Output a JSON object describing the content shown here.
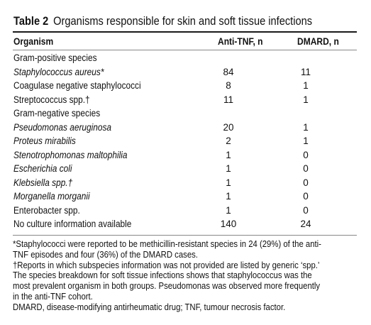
{
  "table": {
    "label": "Table 2",
    "title": "Organisms responsible for skin and soft tissue infections",
    "headers": {
      "organism": "Organism",
      "anti_tnf": "Anti-TNF, n",
      "dmard": "DMARD, n"
    },
    "rows": [
      {
        "organism": "Gram-positive species",
        "italic": false,
        "anti_tnf": "",
        "dmard": ""
      },
      {
        "organism": "Staphylococcus aureus*",
        "italic": true,
        "anti_tnf": "84",
        "dmard": "11"
      },
      {
        "organism": "Coagulase negative staphylococci",
        "italic": false,
        "anti_tnf": "8",
        "dmard": "1"
      },
      {
        "organism": "Streptococcus spp.†",
        "italic": false,
        "anti_tnf": "11",
        "dmard": "1"
      },
      {
        "organism": "Gram-negative species",
        "italic": false,
        "anti_tnf": "",
        "dmard": ""
      },
      {
        "organism": "Pseudomonas aeruginosa",
        "italic": true,
        "anti_tnf": "20",
        "dmard": "1"
      },
      {
        "organism": "Proteus mirabilis",
        "italic": true,
        "anti_tnf": "2",
        "dmard": "1"
      },
      {
        "organism": "Stenotrophomonas maltophilia",
        "italic": true,
        "anti_tnf": "1",
        "dmard": "0"
      },
      {
        "organism": "Escherichia coli",
        "italic": true,
        "anti_tnf": "1",
        "dmard": "0"
      },
      {
        "organism": "Klebsiella spp.†",
        "italic": true,
        "anti_tnf": "1",
        "dmard": "0"
      },
      {
        "organism": "Morganella morganii",
        "italic": true,
        "anti_tnf": "1",
        "dmard": "0"
      },
      {
        "organism": "Enterobacter spp.",
        "italic": false,
        "anti_tnf": "1",
        "dmard": "0"
      },
      {
        "organism": "No culture information available",
        "italic": false,
        "anti_tnf": "140",
        "dmard": "24"
      }
    ]
  },
  "footnotes": {
    "staph_line_1": "*Staphylococci were reported to be methicillin-resistant species in 24 (29%) of the anti-",
    "staph_line_2": "TNF episodes and four (36%) of the DMARD cases.",
    "spp_line_1": "†Reports in which subspecies information was not provided are listed by generic ‘spp.’",
    "spp_line_2": "The species breakdown for soft tissue infections shows that staphylococcus was the",
    "spp_line_3": "most prevalent organism in both groups. Pseudomonas was observed more frequently",
    "spp_line_4": "in the anti-TNF cohort.",
    "abbrev": "DMARD, disease-modifying antirheumatic drug; TNF, tumour necrosis factor."
  }
}
